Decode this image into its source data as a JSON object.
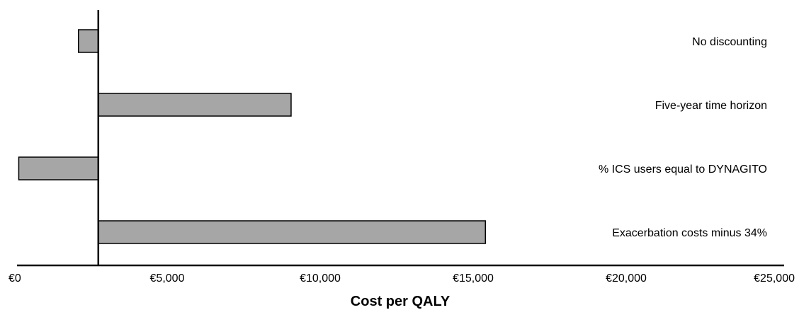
{
  "chart_data": {
    "type": "bar",
    "orientation": "horizontal",
    "base_value": 2750,
    "categories": [
      "No discounting",
      "Five-year time horizon",
      "% ICS users equal to DYNAGITO",
      "Exacerbation costs minus 34%"
    ],
    "values": [
      2100,
      9050,
      150,
      15400
    ],
    "xlim": [
      0,
      25000
    ],
    "xticks": [
      0,
      5000,
      10000,
      15000,
      20000,
      25000
    ],
    "xtick_labels": [
      "€0",
      "€5,000",
      "€10,000",
      "€15,000",
      "€20,000",
      "€25,000"
    ],
    "xlabel": "Cost per QALY",
    "ylabel": "",
    "title": "",
    "grid": false,
    "legend": "none",
    "colors": {
      "bar_fill": "#a6a6a6",
      "bar_stroke": "#000000",
      "axis": "#000000"
    }
  }
}
